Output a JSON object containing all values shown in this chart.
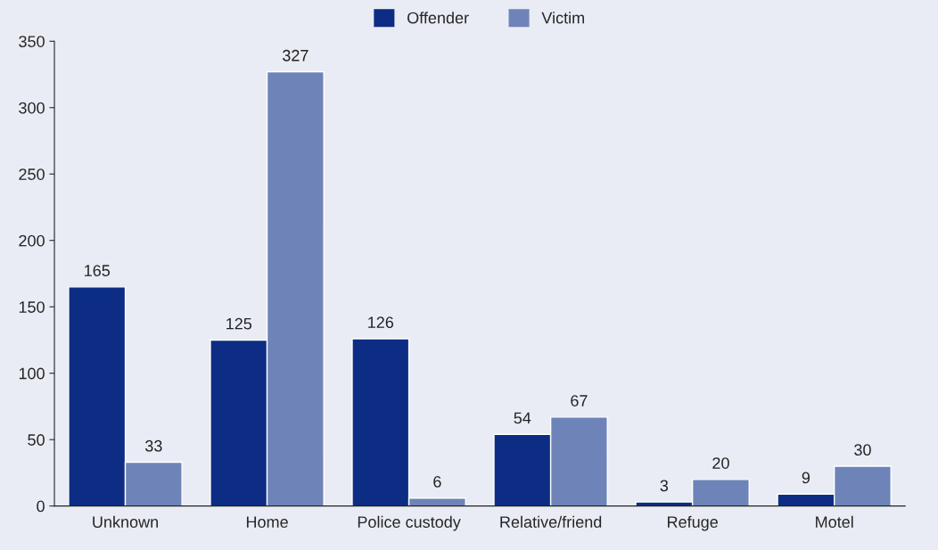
{
  "chart_data": {
    "type": "bar",
    "categories": [
      "Unknown",
      "Home",
      "Police custody",
      "Relative/friend",
      "Refuge",
      "Motel"
    ],
    "series": [
      {
        "name": "Offender",
        "color": "#0c2d83",
        "values": [
          165,
          125,
          126,
          54,
          3,
          9
        ]
      },
      {
        "name": "Victim",
        "color": "#6e84b8",
        "values": [
          33,
          327,
          6,
          67,
          20,
          30
        ]
      }
    ],
    "ylim": [
      0,
      350
    ],
    "yticks": [
      0,
      50,
      100,
      150,
      200,
      250,
      300,
      350
    ],
    "grid": false,
    "legend": "top",
    "data_labels": true
  }
}
